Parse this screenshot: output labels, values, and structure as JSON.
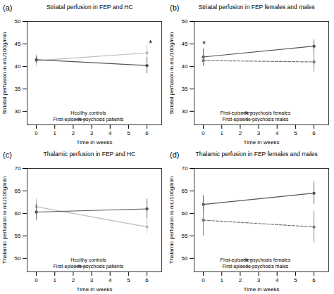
{
  "chart_data": [
    {
      "type": "line",
      "label": "(a)",
      "title": "Striatal perfusion in FEP and HC",
      "xlabel": "Time in weeks",
      "ylabel": "Striatal perfusion in mL/100g/min",
      "x": [
        0,
        6
      ],
      "xlim": [
        -0.5,
        6.8
      ],
      "xticks": [
        0,
        1,
        2,
        3,
        4,
        5,
        6
      ],
      "ylim": [
        27,
        50
      ],
      "yticks": [
        30,
        35,
        40,
        45,
        50
      ],
      "grid": false,
      "legend": "lower right",
      "marker": "circle",
      "series": [
        {
          "name": "Healthy controls",
          "color": "#bbbbbb",
          "line_style": "solid",
          "values": [
            41.3,
            43.0
          ],
          "yerr": [
            1.3,
            1.6
          ]
        },
        {
          "name": "First-episode psychosis patients",
          "color": "#555555",
          "line_style": "solid",
          "values": [
            41.5,
            40.2
          ],
          "yerr": [
            0.8,
            1.8
          ]
        }
      ],
      "annotations": [
        {
          "x": 6.1,
          "y": 44.5,
          "text": "*"
        }
      ]
    },
    {
      "type": "line",
      "label": "(b)",
      "title": "Striatal perfusion in FEP females and males",
      "xlabel": "Time in weeks",
      "ylabel": "Striatal perfusion in mL/100g/min",
      "x": [
        0,
        6
      ],
      "xlim": [
        -0.5,
        6.8
      ],
      "xticks": [
        0,
        1,
        2,
        3,
        4,
        5,
        6
      ],
      "ylim": [
        27,
        50
      ],
      "yticks": [
        30,
        35,
        40,
        45,
        50
      ],
      "grid": false,
      "legend": "lower right",
      "marker": "circle",
      "series": [
        {
          "name": "First-episode psychosis females",
          "color": "#555555",
          "line_style": "solid",
          "values": [
            42.1,
            44.5
          ],
          "yerr": [
            1.8,
            1.4
          ]
        },
        {
          "name": "First-episode psychosis males",
          "color": "#777777",
          "line_style": "dashed",
          "values": [
            41.3,
            41.0
          ],
          "yerr": [
            1.3,
            2.2
          ]
        }
      ],
      "annotations": [
        {
          "x": -0.05,
          "y": 44.3,
          "text": "*"
        }
      ]
    },
    {
      "type": "line",
      "label": "(c)",
      "title": "Thalamic perfusion in FEP and HC",
      "xlabel": "Time in weeks",
      "ylabel": "Thalamic perfusion in mL/100g/min",
      "x": [
        0,
        6
      ],
      "xlim": [
        -0.5,
        6.8
      ],
      "xticks": [
        0,
        1,
        2,
        3,
        4,
        5,
        6
      ],
      "ylim": [
        47,
        70
      ],
      "yticks": [
        50,
        55,
        60,
        65,
        70
      ],
      "grid": false,
      "legend": "lower right",
      "marker": "circle",
      "series": [
        {
          "name": "Healthy controls",
          "color": "#bbbbbb",
          "line_style": "solid",
          "values": [
            61.5,
            57.0
          ],
          "yerr": [
            1.8,
            1.5
          ]
        },
        {
          "name": "First-episode psychosis patients",
          "color": "#555555",
          "line_style": "solid",
          "values": [
            60.3,
            61.0
          ],
          "yerr": [
            1.8,
            2.2
          ]
        }
      ],
      "annotations": []
    },
    {
      "type": "line",
      "label": "(d)",
      "title": "Thalamic perfusion in FEP females and males",
      "xlabel": "Time in weeks",
      "ylabel": "Thalamic perfusion in mL/100g/min",
      "x": [
        0,
        6
      ],
      "xlim": [
        -0.5,
        6.8
      ],
      "xticks": [
        0,
        1,
        2,
        3,
        4,
        5,
        6
      ],
      "ylim": [
        47,
        70
      ],
      "yticks": [
        50,
        55,
        60,
        65,
        70
      ],
      "grid": false,
      "legend": "lower right",
      "marker": "circle",
      "series": [
        {
          "name": "First-episode psychosis females",
          "color": "#555555",
          "line_style": "solid",
          "values": [
            62.0,
            64.5
          ],
          "yerr": [
            2.0,
            2.5
          ]
        },
        {
          "name": "First-episode psychosis males",
          "color": "#777777",
          "line_style": "dashed",
          "values": [
            58.5,
            57.0
          ],
          "yerr": [
            3.5,
            3.5
          ]
        }
      ],
      "annotations": []
    }
  ]
}
